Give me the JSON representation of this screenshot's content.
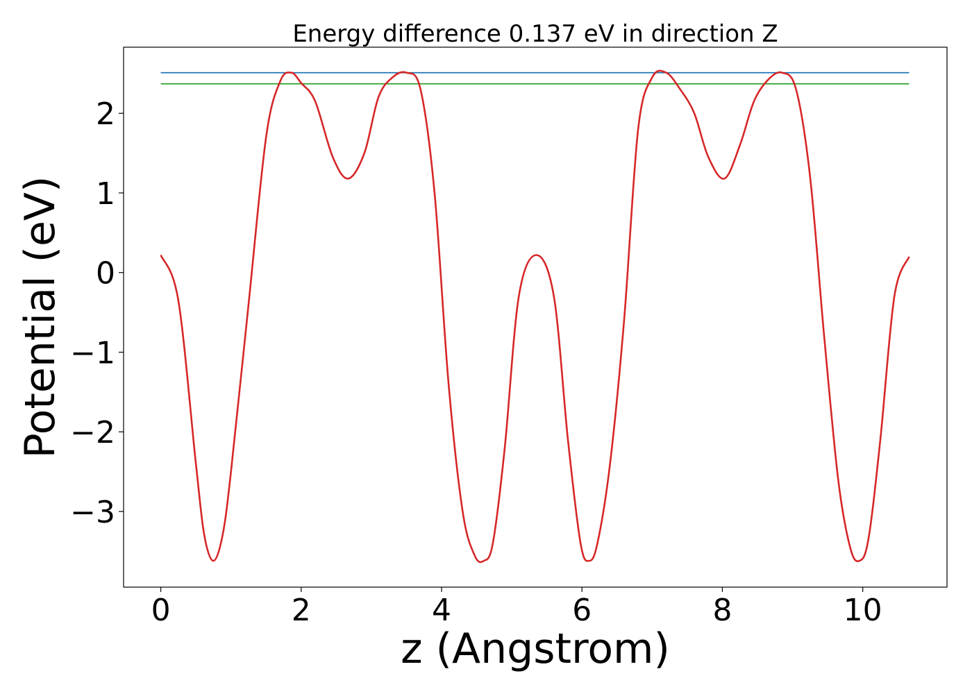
{
  "chart_data": {
    "type": "line",
    "title": "Energy difference 0.137 eV in direction Z",
    "xlabel": "z (Angstrom)",
    "ylabel": "Potential (eV)",
    "xlim": [
      -0.53,
      11.2
    ],
    "ylim": [
      -3.95,
      2.83
    ],
    "xticks": [
      0,
      2,
      4,
      6,
      8,
      10
    ],
    "xtick_labels": [
      "0",
      "2",
      "4",
      "6",
      "8",
      "10"
    ],
    "yticks": [
      -3,
      -2,
      -1,
      0,
      1,
      2
    ],
    "ytick_labels": [
      "−3",
      "−2",
      "−1",
      "0",
      "1",
      "2"
    ],
    "grid": false,
    "series": [
      {
        "color": "#d62728",
        "style": "curve",
        "x": [
          0.0,
          0.25,
          0.5,
          0.62,
          0.75,
          0.88,
          1.0,
          1.25,
          1.5,
          1.7,
          1.86,
          2.0,
          2.2,
          2.45,
          2.67,
          2.9,
          3.1,
          3.3,
          3.5,
          3.7,
          3.9,
          4.1,
          4.3,
          4.47,
          4.6,
          4.73,
          4.9,
          5.1,
          5.35,
          5.6,
          5.8,
          5.98,
          6.1,
          6.22,
          6.4,
          6.6,
          6.8,
          7.0,
          7.2,
          7.4,
          7.6,
          7.8,
          8.03,
          8.25,
          8.45,
          8.65,
          8.85,
          9.05,
          9.25,
          9.45,
          9.65,
          9.82,
          9.95,
          10.08,
          10.25,
          10.45,
          10.66
        ],
        "y": [
          0.22,
          -0.35,
          -2.4,
          -3.3,
          -3.62,
          -3.3,
          -2.5,
          -0.4,
          1.7,
          2.4,
          2.51,
          2.38,
          2.15,
          1.45,
          1.18,
          1.5,
          2.2,
          2.45,
          2.51,
          2.3,
          1.0,
          -1.4,
          -3.0,
          -3.55,
          -3.62,
          -3.4,
          -2.2,
          -0.3,
          0.22,
          -0.3,
          -2.1,
          -3.4,
          -3.62,
          -3.4,
          -2.4,
          -0.6,
          1.8,
          2.45,
          2.51,
          2.3,
          2.0,
          1.45,
          1.18,
          1.6,
          2.15,
          2.42,
          2.51,
          2.3,
          1.2,
          -0.8,
          -2.6,
          -3.45,
          -3.62,
          -3.35,
          -2.1,
          -0.3,
          0.2
        ]
      },
      {
        "color": "#1f77b4",
        "style": "hline",
        "x": [
          0.0,
          10.66
        ],
        "y": [
          2.51,
          2.51
        ]
      },
      {
        "color": "#2ca02c",
        "style": "hline",
        "x": [
          0.0,
          10.66
        ],
        "y": [
          2.37,
          2.37
        ]
      }
    ]
  }
}
